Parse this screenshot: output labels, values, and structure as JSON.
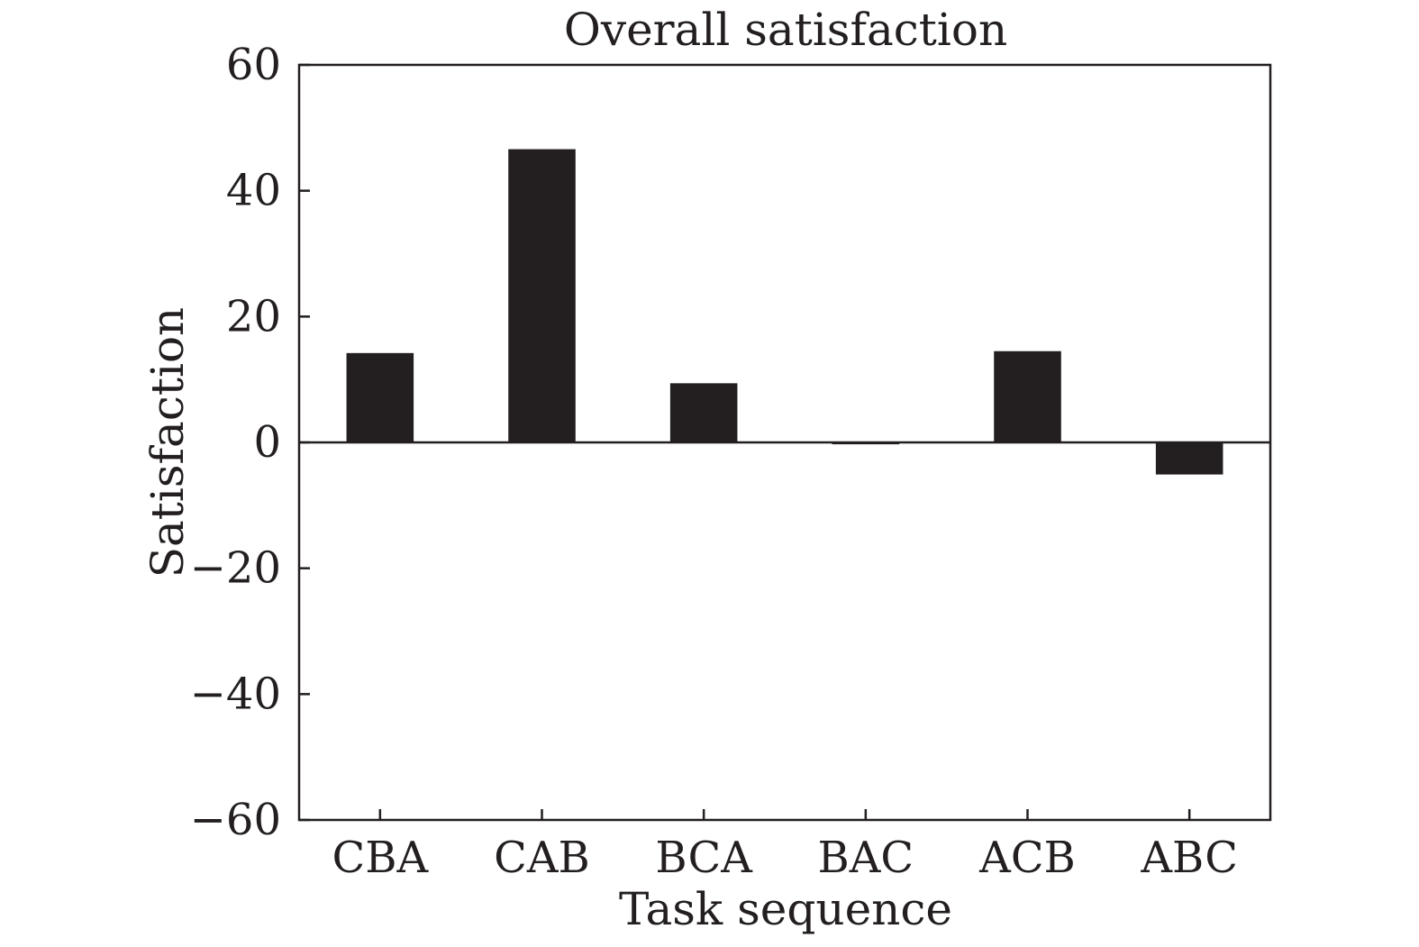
{
  "chart_data": {
    "type": "bar",
    "title": "Overall satisfaction",
    "xlabel": "Task sequence",
    "ylabel": "Satisfaction",
    "categories": [
      "CBA",
      "CAB",
      "BCA",
      "BAC",
      "ACB",
      "ABC"
    ],
    "values": [
      14.2,
      46.6,
      9.4,
      -0.3,
      14.5,
      -5.1
    ],
    "ylim": [
      -60,
      60
    ],
    "yticks": [
      60,
      40,
      20,
      0,
      -20,
      -40,
      -60
    ],
    "ytick_labels": [
      "60",
      "40",
      "20",
      "0",
      "−20",
      "−40",
      "−60"
    ],
    "grid": false,
    "bar_color": "#231f20"
  }
}
